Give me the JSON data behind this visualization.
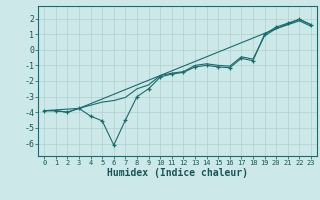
{
  "xlabel": "Humidex (Indice chaleur)",
  "bg_color": "#cce8e8",
  "grid_color": "#b0d0d0",
  "line_color": "#1a6b6b",
  "xlim": [
    -0.5,
    23.5
  ],
  "ylim": [
    -6.8,
    2.8
  ],
  "yticks": [
    2,
    1,
    0,
    -1,
    -2,
    -3,
    -4,
    -5,
    -6
  ],
  "xticks": [
    0,
    1,
    2,
    3,
    4,
    5,
    6,
    7,
    8,
    9,
    10,
    11,
    12,
    13,
    14,
    15,
    16,
    17,
    18,
    19,
    20,
    21,
    22,
    23
  ],
  "line1_x": [
    0,
    1,
    2,
    3,
    4,
    5,
    6,
    7,
    8,
    9,
    10,
    11,
    12,
    13,
    14,
    15,
    16,
    17,
    18,
    19,
    20,
    21,
    22,
    23
  ],
  "line1_y": [
    -3.9,
    -3.9,
    -4.0,
    -3.75,
    -4.25,
    -4.55,
    -6.1,
    -4.5,
    -3.0,
    -2.5,
    -1.75,
    -1.55,
    -1.45,
    -1.1,
    -1.0,
    -1.1,
    -1.15,
    -0.55,
    -0.7,
    1.0,
    1.45,
    1.7,
    1.95,
    1.6
  ],
  "line2_x": [
    0,
    1,
    2,
    3,
    4,
    5,
    6,
    7,
    8,
    9,
    10,
    11,
    12,
    13,
    14,
    15,
    16,
    17,
    18,
    19,
    20,
    21,
    22,
    23
  ],
  "line2_y": [
    -3.9,
    -3.9,
    -4.0,
    -3.75,
    -3.55,
    -3.35,
    -3.25,
    -3.05,
    -2.5,
    -2.25,
    -1.65,
    -1.5,
    -1.4,
    -1.0,
    -0.9,
    -1.0,
    -1.05,
    -0.45,
    -0.6,
    0.9,
    1.35,
    1.6,
    1.85,
    1.5
  ],
  "line3_x": [
    0,
    3,
    22,
    23
  ],
  "line3_y": [
    -3.9,
    -3.75,
    1.95,
    1.6
  ]
}
